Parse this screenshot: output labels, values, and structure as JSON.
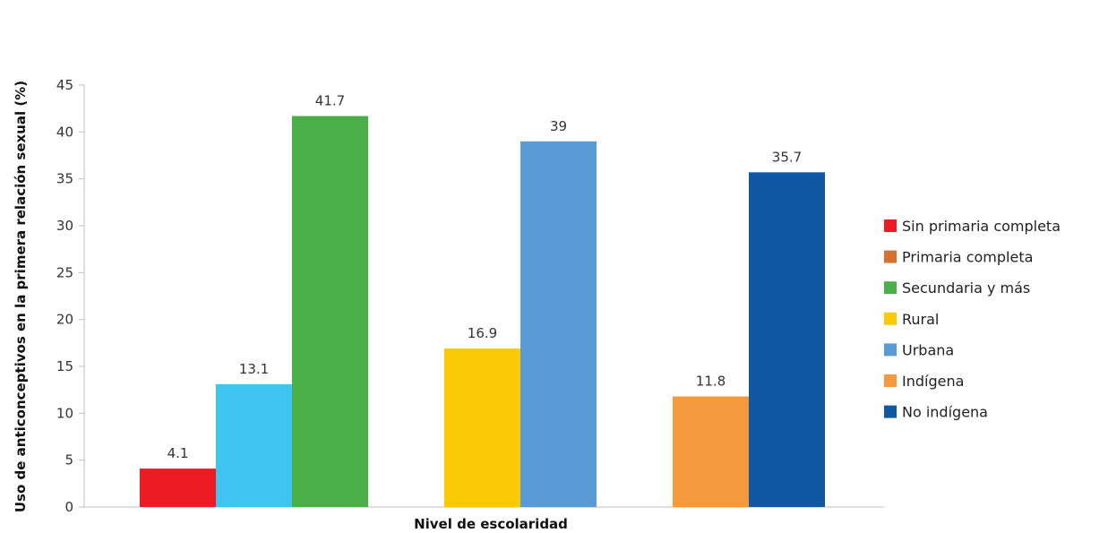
{
  "chart_data": {
    "type": "bar",
    "xlabel": "Nivel de escolaridad",
    "ylabel": "Uso de anticonceptivos en la primera relación sexual (%)",
    "ylim": [
      0,
      45
    ],
    "yticks": [
      "0",
      "5",
      "10",
      "15",
      "20",
      "25",
      "30",
      "35",
      "40",
      "45"
    ],
    "grid": false,
    "legend_position": "right",
    "groups": [
      {
        "bars": [
          {
            "series": "Sin primaria completa",
            "value": 4.1,
            "label": "4.1",
            "color": "#ed1c24"
          },
          {
            "series": "Primaria completa",
            "value": 13.1,
            "label": "13.1",
            "color": "#3ec5f1"
          },
          {
            "series": "Secundaria y más",
            "value": 41.7,
            "label": "41.7",
            "color": "#4aaf47"
          }
        ]
      },
      {
        "bars": [
          {
            "series": "Rural",
            "value": 16.9,
            "label": "16.9",
            "color": "#fcca05"
          },
          {
            "series": "Urbana",
            "value": 39,
            "label": "39",
            "color": "#5b9bd5"
          }
        ]
      },
      {
        "bars": [
          {
            "series": "Indígena",
            "value": 11.8,
            "label": "11.8",
            "color": "#f59a3c"
          },
          {
            "series": "No indígena",
            "value": 35.7,
            "label": "35.7",
            "color": "#1158a4"
          }
        ]
      }
    ],
    "legend": [
      {
        "label": "Sin primaria completa",
        "color": "#ed1c24"
      },
      {
        "label": "Primaria completa",
        "color": "#d9712c"
      },
      {
        "label": "Secundaria y más",
        "color": "#4aaf47"
      },
      {
        "label": "Rural",
        "color": "#fcca05"
      },
      {
        "label": "Urbana",
        "color": "#5b9bd5"
      },
      {
        "label": "Indígena",
        "color": "#f59a3c"
      },
      {
        "label": "No indígena",
        "color": "#1158a4"
      }
    ]
  }
}
